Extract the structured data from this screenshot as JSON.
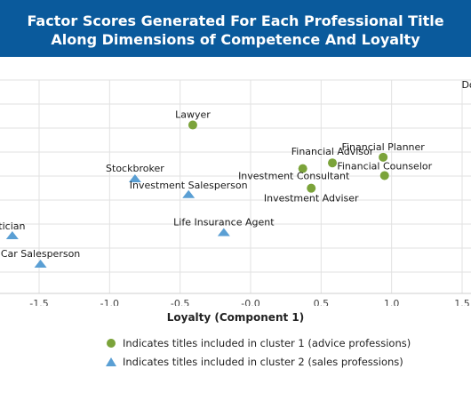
{
  "header": {
    "title_line1": "Factor Scores Generated For Each Professional Title",
    "title_line2": "Along Dimensions of Competence And Loyalty"
  },
  "colors": {
    "header_bg": "#0a5a9c",
    "cluster1": "#7ba33a",
    "cluster2": "#5a9fd4",
    "grid": "#e2e2e2"
  },
  "legend": {
    "cluster1": "Indicates titles included in cluster 1 (advice professions)",
    "cluster2": "Indicates titles included in cluster 2 (sales professions)"
  },
  "chart_data": {
    "type": "scatter",
    "xlabel": "Loyalty (Component 1)",
    "ylabel": "",
    "xlim": [
      -1.78,
      1.62
    ],
    "x_ticks": [
      "-1.5",
      "-1.0",
      "-0.5",
      "-0.0",
      "0.5",
      "1.0",
      "1.5"
    ],
    "x_tick_values": [
      -1.5,
      -1.0,
      -0.5,
      0.0,
      0.5,
      1.0,
      1.5
    ],
    "grid": true,
    "series": [
      {
        "marker": "circle",
        "points": [
          {
            "label": "Doctor",
            "x": 1.61,
            "y": 2.6
          },
          {
            "label": "Lawyer",
            "x": -0.41,
            "y": 2.1
          },
          {
            "label": "Financial Planner",
            "x": 0.94,
            "y": 1.59
          },
          {
            "label": "Financial Advisor",
            "x": 0.58,
            "y": 1.5
          },
          {
            "label": "Financial Counselor",
            "x": 0.95,
            "y": 1.3
          },
          {
            "label": "Investment Consultant",
            "x": 0.37,
            "y": 1.41
          },
          {
            "label": "Investment Adviser",
            "x": 0.43,
            "y": 1.1
          }
        ]
      },
      {
        "marker": "triangle",
        "points": [
          {
            "label": "Stockbroker",
            "x": -0.82,
            "y": 1.25
          },
          {
            "label": "Investment Salesperson",
            "x": -0.44,
            "y": 1.0
          },
          {
            "label": "Politician",
            "x": -1.69,
            "y": 0.35
          },
          {
            "label": "Life Insurance Agent",
            "x": -0.19,
            "y": 0.4
          },
          {
            "label": "Car Salesperson",
            "x": -1.49,
            "y": -0.1
          }
        ]
      }
    ]
  }
}
